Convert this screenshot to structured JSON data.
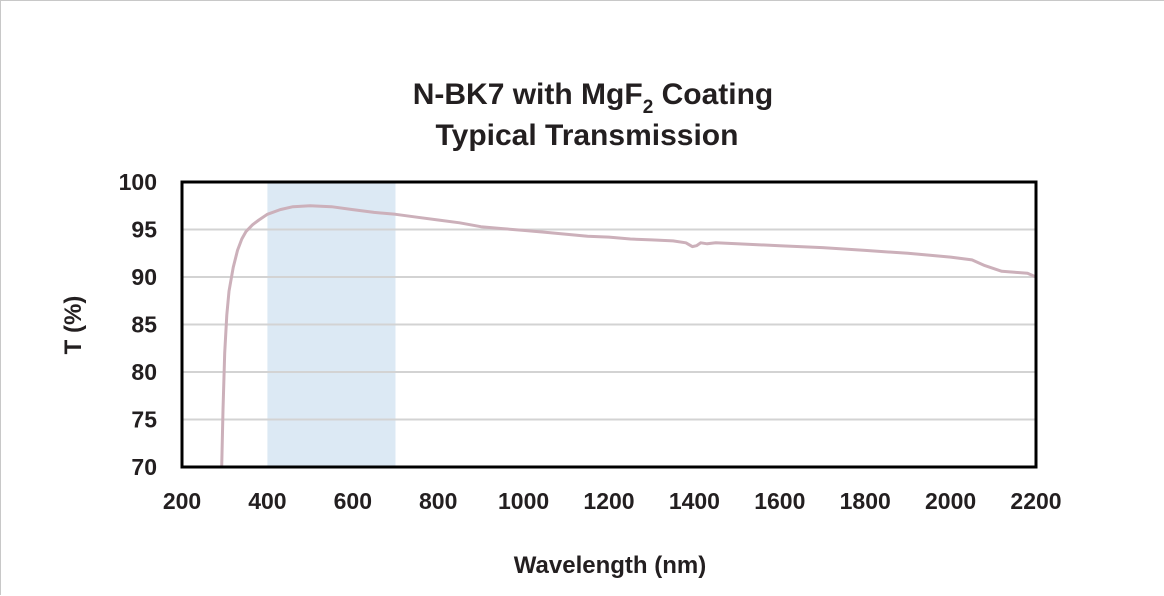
{
  "chart_data": {
    "type": "line",
    "title_line1": "N-BK7 with MgF",
    "title_sub": "2",
    "title_line1_end": " Coating",
    "title_line2": "Typical Transmission",
    "xlabel": "Wavelength (nm)",
    "ylabel": "T (%)",
    "xlim": [
      200,
      2200
    ],
    "ylim": [
      70,
      100
    ],
    "xticks": [
      200,
      400,
      600,
      800,
      1000,
      1200,
      1400,
      1600,
      1800,
      2000,
      2200
    ],
    "yticks": [
      70,
      75,
      80,
      85,
      90,
      95,
      100
    ],
    "grid": true,
    "highlight_band": [
      400,
      700
    ],
    "series": [
      {
        "x": [
          293,
          296,
          300,
          305,
          310,
          320,
          330,
          340,
          350,
          365,
          380,
          400,
          430,
          460,
          500,
          550,
          600,
          650,
          700,
          750,
          800,
          850,
          900,
          950,
          1000,
          1050,
          1100,
          1150,
          1200,
          1250,
          1300,
          1350,
          1380,
          1395,
          1405,
          1415,
          1430,
          1450,
          1500,
          1600,
          1700,
          1800,
          1900,
          2000,
          2050,
          2080,
          2100,
          2120,
          2150,
          2180,
          2200
        ],
        "y": [
          70,
          76,
          82,
          86,
          88.5,
          91,
          92.8,
          94,
          94.8,
          95.5,
          96,
          96.6,
          97.1,
          97.4,
          97.5,
          97.4,
          97.1,
          96.8,
          96.6,
          96.3,
          96,
          95.7,
          95.3,
          95.1,
          94.9,
          94.7,
          94.5,
          94.3,
          94.2,
          94,
          93.9,
          93.8,
          93.6,
          93.2,
          93.3,
          93.6,
          93.5,
          93.6,
          93.5,
          93.3,
          93.1,
          92.8,
          92.5,
          92.1,
          91.8,
          91.2,
          90.9,
          90.6,
          90.5,
          90.4,
          90
        ]
      }
    ],
    "colors": {
      "line": "#ccb0ba",
      "band": "#dce9f4",
      "grid": "#d3d3d3",
      "frame": "#000000"
    }
  }
}
